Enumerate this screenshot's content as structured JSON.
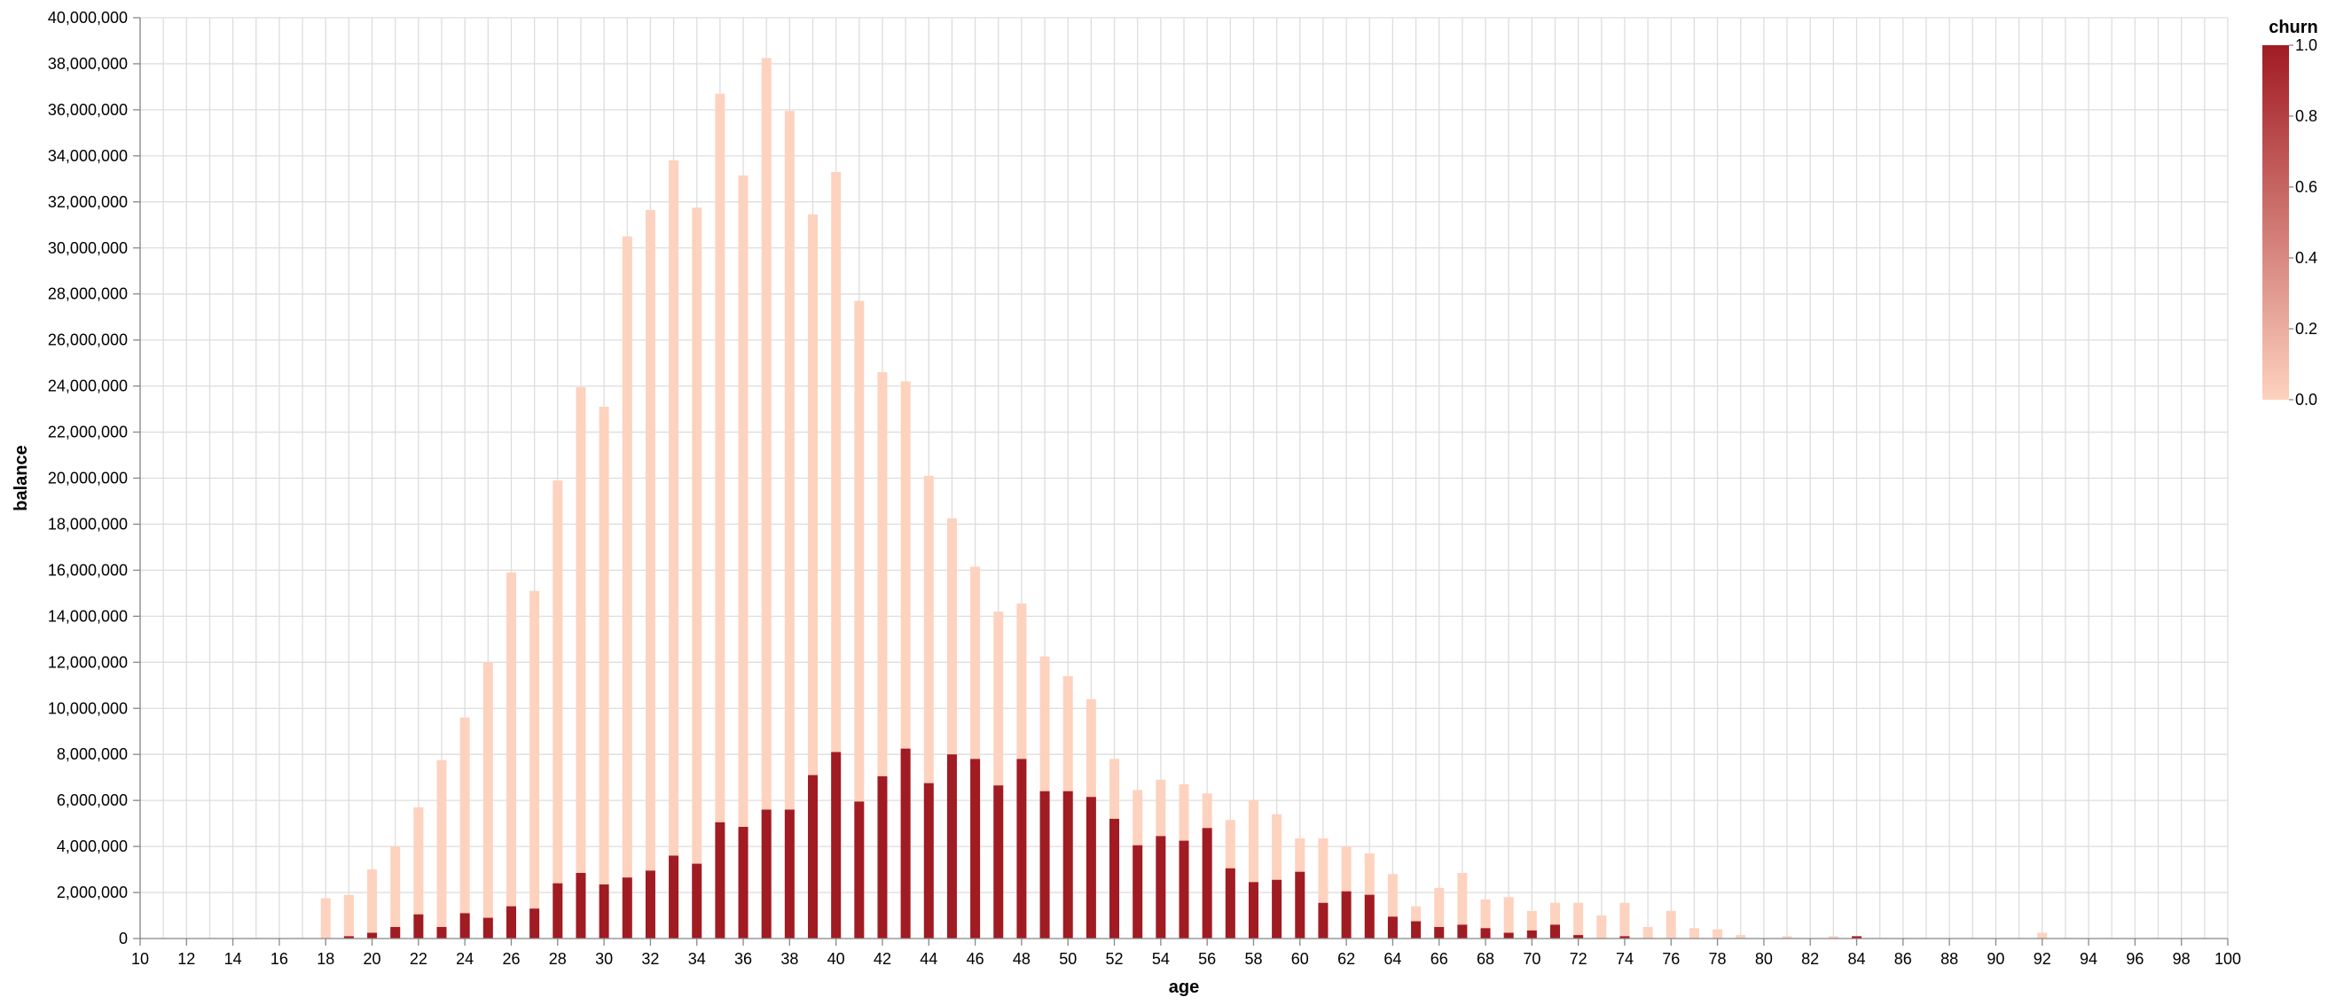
{
  "chart_data": {
    "type": "bar",
    "mark": "stacked vertical bars (overlaid, one bar per age, churn encoded as color)",
    "x": {
      "label": "age",
      "domain": [
        10,
        100
      ],
      "ticks": [
        10,
        12,
        14,
        16,
        18,
        20,
        22,
        24,
        26,
        28,
        30,
        32,
        34,
        36,
        38,
        40,
        42,
        44,
        46,
        48,
        50,
        52,
        54,
        56,
        58,
        60,
        62,
        64,
        66,
        68,
        70,
        72,
        74,
        76,
        78,
        80,
        82,
        84,
        86,
        88,
        90,
        92,
        94,
        96,
        98,
        100
      ]
    },
    "y": {
      "label": "balance",
      "domain": [
        0,
        40000000
      ],
      "ticks": [
        0,
        2000000,
        4000000,
        6000000,
        8000000,
        10000000,
        12000000,
        14000000,
        16000000,
        18000000,
        20000000,
        22000000,
        24000000,
        26000000,
        28000000,
        30000000,
        32000000,
        34000000,
        36000000,
        38000000,
        40000000
      ]
    },
    "grid": true,
    "legend": {
      "title": "churn",
      "placement": "top-right",
      "ticks": [
        1.0,
        0.8,
        0.6,
        0.4,
        0.2,
        0.0
      ],
      "tick_labels": [
        "1.0",
        "0.8",
        "0.6",
        "0.4",
        "0.2",
        "0.0"
      ],
      "color_min": "#fdd2bf",
      "color_max": "#a11b23"
    },
    "series": [
      {
        "churn": 0,
        "color": "#fdd2bf",
        "points": [
          [
            18,
            1750000
          ],
          [
            19,
            1900000
          ],
          [
            20,
            3000000
          ],
          [
            21,
            4000000
          ],
          [
            22,
            5700000
          ],
          [
            23,
            7750000
          ],
          [
            24,
            9600000
          ],
          [
            25,
            12000000
          ],
          [
            26,
            15900000
          ],
          [
            27,
            15100000
          ],
          [
            28,
            19900000
          ],
          [
            29,
            23950000
          ],
          [
            30,
            23100000
          ],
          [
            31,
            30500000
          ],
          [
            32,
            31650000
          ],
          [
            33,
            33800000
          ],
          [
            34,
            31750000
          ],
          [
            35,
            36700000
          ],
          [
            36,
            33150000
          ],
          [
            37,
            38250000
          ],
          [
            38,
            35950000
          ],
          [
            39,
            31450000
          ],
          [
            40,
            33300000
          ],
          [
            41,
            27700000
          ],
          [
            42,
            24600000
          ],
          [
            43,
            24200000
          ],
          [
            44,
            20100000
          ],
          [
            45,
            18250000
          ],
          [
            46,
            16150000
          ],
          [
            47,
            14200000
          ],
          [
            48,
            14550000
          ],
          [
            49,
            12250000
          ],
          [
            50,
            11400000
          ],
          [
            51,
            10400000
          ],
          [
            52,
            7800000
          ],
          [
            53,
            6450000
          ],
          [
            54,
            6900000
          ],
          [
            55,
            6700000
          ],
          [
            56,
            6300000
          ],
          [
            57,
            5150000
          ],
          [
            58,
            6000000
          ],
          [
            59,
            5400000
          ],
          [
            60,
            4350000
          ],
          [
            61,
            4350000
          ],
          [
            62,
            4000000
          ],
          [
            63,
            3700000
          ],
          [
            64,
            2800000
          ],
          [
            65,
            1400000
          ],
          [
            66,
            2200000
          ],
          [
            67,
            2850000
          ],
          [
            68,
            1700000
          ],
          [
            69,
            1800000
          ],
          [
            70,
            1200000
          ],
          [
            71,
            1550000
          ],
          [
            72,
            1550000
          ],
          [
            73,
            1000000
          ],
          [
            74,
            1550000
          ],
          [
            75,
            500000
          ],
          [
            76,
            1200000
          ],
          [
            77,
            450000
          ],
          [
            78,
            400000
          ],
          [
            79,
            150000
          ],
          [
            81,
            100000
          ],
          [
            83,
            100000
          ],
          [
            84,
            80000
          ],
          [
            92,
            250000
          ]
        ]
      },
      {
        "churn": 1,
        "color": "#a11b23",
        "points": [
          [
            19,
            100000
          ],
          [
            20,
            250000
          ],
          [
            21,
            500000
          ],
          [
            22,
            1050000
          ],
          [
            23,
            500000
          ],
          [
            24,
            1100000
          ],
          [
            25,
            900000
          ],
          [
            26,
            1400000
          ],
          [
            27,
            1300000
          ],
          [
            28,
            2400000
          ],
          [
            29,
            2850000
          ],
          [
            30,
            2350000
          ],
          [
            31,
            2650000
          ],
          [
            32,
            2950000
          ],
          [
            33,
            3600000
          ],
          [
            34,
            3250000
          ],
          [
            35,
            5050000
          ],
          [
            36,
            4850000
          ],
          [
            37,
            5600000
          ],
          [
            38,
            5600000
          ],
          [
            39,
            7100000
          ],
          [
            40,
            8100000
          ],
          [
            41,
            5950000
          ],
          [
            42,
            7050000
          ],
          [
            43,
            8250000
          ],
          [
            44,
            6750000
          ],
          [
            45,
            8000000
          ],
          [
            46,
            7800000
          ],
          [
            47,
            6650000
          ],
          [
            48,
            7800000
          ],
          [
            49,
            6400000
          ],
          [
            50,
            6400000
          ],
          [
            51,
            6150000
          ],
          [
            52,
            5200000
          ],
          [
            53,
            4050000
          ],
          [
            54,
            4450000
          ],
          [
            55,
            4250000
          ],
          [
            56,
            4800000
          ],
          [
            57,
            3050000
          ],
          [
            58,
            2450000
          ],
          [
            59,
            2550000
          ],
          [
            60,
            2900000
          ],
          [
            61,
            1550000
          ],
          [
            62,
            2050000
          ],
          [
            63,
            1900000
          ],
          [
            64,
            950000
          ],
          [
            65,
            750000
          ],
          [
            66,
            500000
          ],
          [
            67,
            600000
          ],
          [
            68,
            450000
          ],
          [
            69,
            250000
          ],
          [
            70,
            350000
          ],
          [
            71,
            600000
          ],
          [
            72,
            150000
          ],
          [
            74,
            100000
          ],
          [
            84,
            100000
          ]
        ]
      }
    ]
  }
}
